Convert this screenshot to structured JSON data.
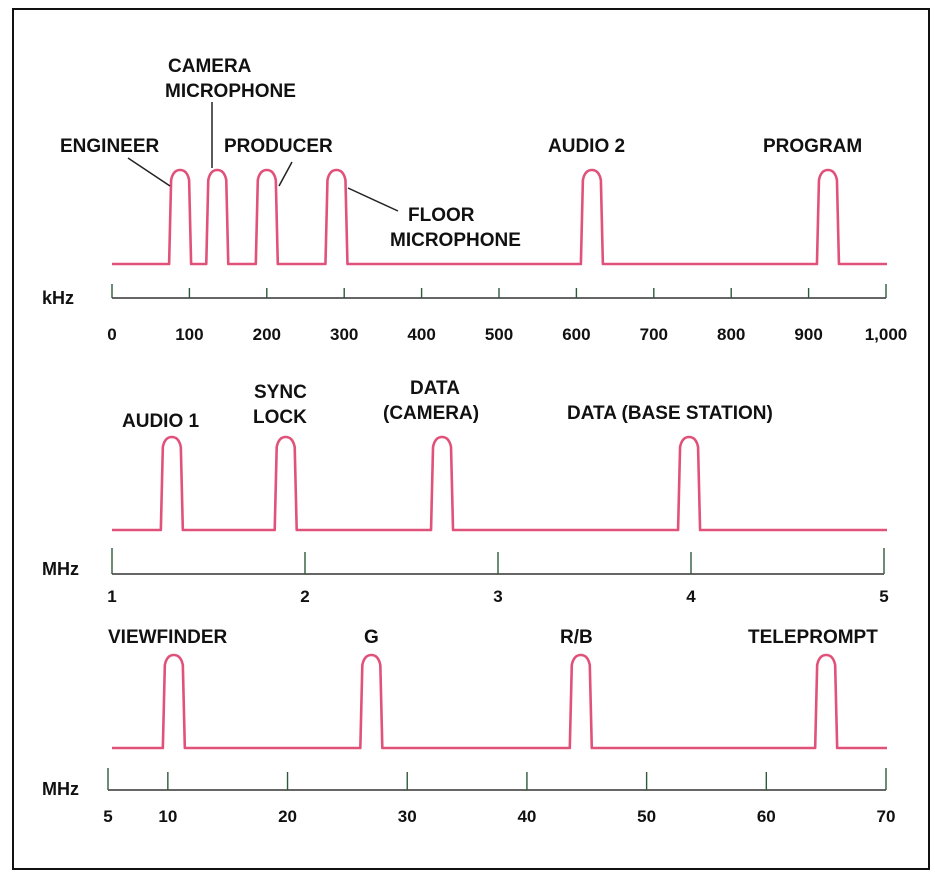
{
  "panels": [
    {
      "id": "khz",
      "unit": "kHz",
      "range": [
        0,
        1000
      ],
      "ticks": [
        {
          "v": 0,
          "label": "0"
        },
        {
          "v": 100,
          "label": "100"
        },
        {
          "v": 200,
          "label": "200"
        },
        {
          "v": 300,
          "label": "300"
        },
        {
          "v": 400,
          "label": "400"
        },
        {
          "v": 500,
          "label": "500"
        },
        {
          "v": 600,
          "label": "600"
        },
        {
          "v": 700,
          "label": "700"
        },
        {
          "v": 800,
          "label": "800"
        },
        {
          "v": 900,
          "label": "900"
        },
        {
          "v": 1000,
          "label": "1,000"
        }
      ],
      "peaks": [
        {
          "center": 88,
          "label_lines": [
            "ENGINEER"
          ]
        },
        {
          "center": 136,
          "label_lines": [
            "CAMERA",
            "MICROPHONE"
          ]
        },
        {
          "center": 200,
          "label_lines": [
            "PRODUCER"
          ]
        },
        {
          "center": 290,
          "label_lines": [
            "FLOOR",
            "MICROPHONE"
          ]
        },
        {
          "center": 620,
          "label_lines": [
            "AUDIO 2"
          ]
        },
        {
          "center": 925,
          "label_lines": [
            "PROGRAM"
          ]
        }
      ]
    },
    {
      "id": "mhz1",
      "unit": "MHz",
      "range": [
        1,
        5
      ],
      "ticks": [
        {
          "v": 1,
          "label": "1"
        },
        {
          "v": 2,
          "label": "2"
        },
        {
          "v": 3,
          "label": "3"
        },
        {
          "v": 4,
          "label": "4"
        },
        {
          "v": 5,
          "label": "5"
        }
      ],
      "peaks": [
        {
          "center": 1.31,
          "label_lines": [
            "AUDIO 1"
          ]
        },
        {
          "center": 1.9,
          "label_lines": [
            "SYNC",
            "LOCK"
          ]
        },
        {
          "center": 2.71,
          "label_lines": [
            "DATA",
            "(CAMERA)"
          ]
        },
        {
          "center": 3.99,
          "label_lines": [
            "DATA (BASE STATION)"
          ]
        }
      ]
    },
    {
      "id": "mhz2",
      "unit": "MHz",
      "range": [
        5,
        70
      ],
      "ticks": [
        {
          "v": 5,
          "label": "5"
        },
        {
          "v": 10,
          "label": "10"
        },
        {
          "v": 20,
          "label": "20"
        },
        {
          "v": 30,
          "label": "30"
        },
        {
          "v": 40,
          "label": "40"
        },
        {
          "v": 50,
          "label": "50"
        },
        {
          "v": 60,
          "label": "60"
        },
        {
          "v": 70,
          "label": "70"
        }
      ],
      "peaks": [
        {
          "center": 10.5,
          "label_lines": [
            "VIEWFINDER"
          ]
        },
        {
          "center": 27,
          "label_lines": [
            "G"
          ]
        },
        {
          "center": 44.5,
          "label_lines": [
            "R/B"
          ]
        },
        {
          "center": 65,
          "label_lines": [
            "TELEPROMPT"
          ]
        }
      ]
    }
  ],
  "colors": {
    "signal": "#e0527a",
    "axis": "#333333",
    "tick": "#2d5a3a",
    "text": "#111111"
  }
}
